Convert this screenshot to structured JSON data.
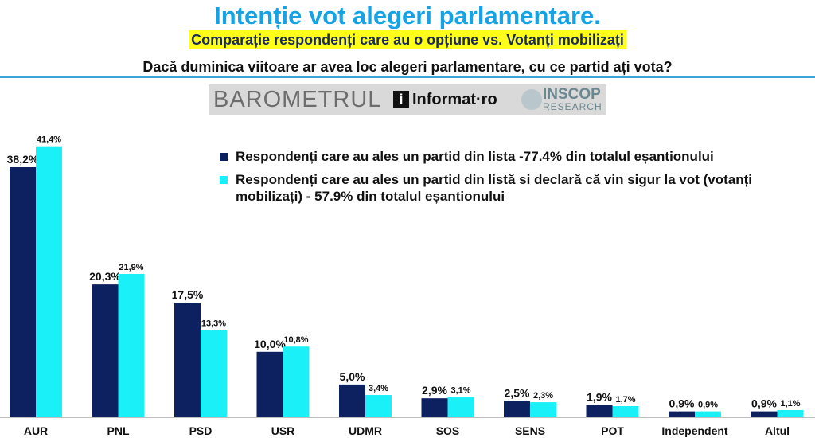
{
  "header": {
    "title": "Intenție vot alegeri parlamentare.",
    "subtitle": "Comparație respondenți care au o opțiune vs. Votanți mobilizați",
    "question": "Dacă duminica viitoare ar avea loc alegeri parlamentare, cu ce partid ați vota?"
  },
  "logo": {
    "barometrul": "BAROMETRUL",
    "i_mark": "i",
    "informat": "Informat·ro",
    "inscop": "INSCOP",
    "research": "RESEARCH"
  },
  "colors": {
    "series1": "#0d2161",
    "series2": "#19f0f7",
    "title": "#15a3e6",
    "subtitle_bg": "#ffff1a"
  },
  "chart_data": {
    "type": "bar",
    "categories": [
      "AUR",
      "PNL",
      "PSD",
      "USR",
      "UDMR",
      "SOS",
      "SENS",
      "POT",
      "Independent",
      "Altul"
    ],
    "series": [
      {
        "name": "Respondenți care au ales un partid din lista -77.4% din totalul eșantionului",
        "values": [
          38.2,
          20.3,
          17.5,
          10.0,
          5.0,
          2.9,
          2.5,
          1.9,
          0.9,
          0.9
        ],
        "labels": [
          "38,2%",
          "20,3%",
          "17,5%",
          "10,0%",
          "5,0%",
          "2,9%",
          "2,5%",
          "1,9%",
          "0,9%",
          "0,9%"
        ]
      },
      {
        "name": "Respondenți care au ales un partid din listă si declară că vin sigur la vot (votanți mobilizați) - 57.9% din totalul eșantionului",
        "values": [
          41.4,
          21.9,
          13.3,
          10.8,
          3.4,
          3.1,
          2.3,
          1.7,
          0.9,
          1.1
        ],
        "labels": [
          "41,4%",
          "21,9%",
          "13,3%",
          "10,8%",
          "3,4%",
          "3,1%",
          "2,3%",
          "1,7%",
          "0,9%",
          "1,1%"
        ]
      }
    ],
    "legend_position": "top-right",
    "grid": false
  }
}
